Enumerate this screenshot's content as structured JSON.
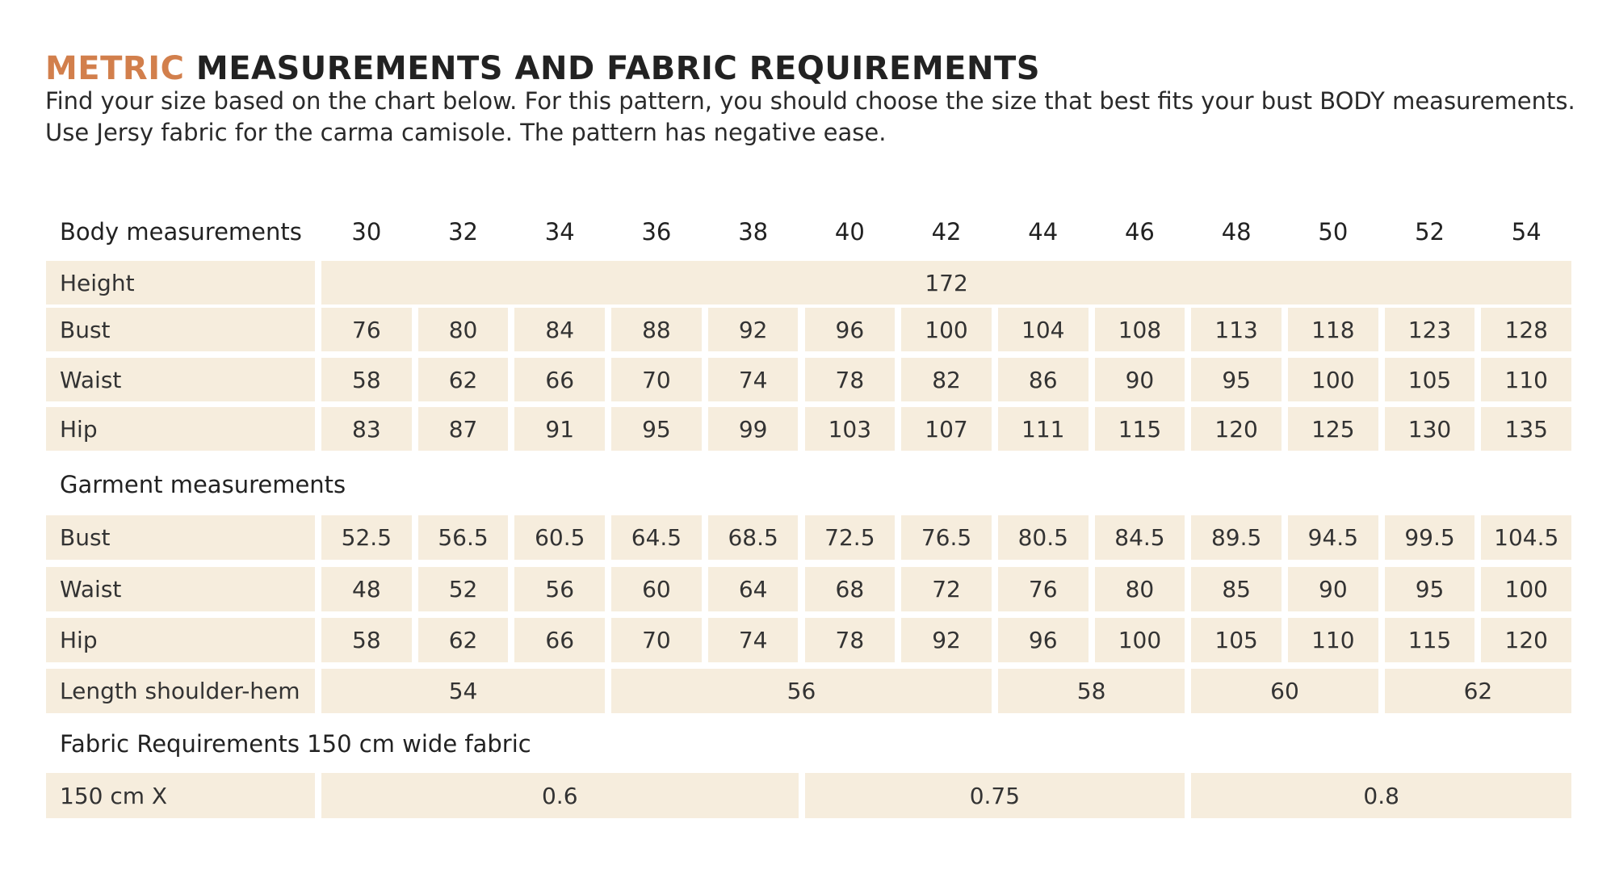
{
  "title": {
    "highlight": "METRIC",
    "rest": "MEASUREMENTS AND FABRIC REQUIREMENTS"
  },
  "description": [
    "Find your size based on the chart below. For this pattern, you should choose the size that best fits your bust BODY measurements.",
    "Use Jersy fabric for the carma camisole. The pattern has negative ease."
  ],
  "table": {
    "header": {
      "label": "Body measurements",
      "sizes": [
        "30",
        "32",
        "34",
        "36",
        "38",
        "40",
        "42",
        "44",
        "46",
        "48",
        "50",
        "52",
        "54"
      ]
    },
    "body_rows": [
      {
        "label": "Height",
        "cells": [
          "172"
        ]
      },
      {
        "label": "Bust",
        "cells": [
          "76",
          "80",
          "84",
          "88",
          "92",
          "96",
          "100",
          "104",
          "108",
          "113",
          "118",
          "123",
          "128"
        ]
      },
      {
        "label": "Waist",
        "cells": [
          "58",
          "62",
          "66",
          "70",
          "74",
          "78",
          "82",
          "86",
          "90",
          "95",
          "100",
          "105",
          "110"
        ]
      },
      {
        "label": "Hip",
        "cells": [
          "83",
          "87",
          "91",
          "95",
          "99",
          "103",
          "107",
          "111",
          "115",
          "120",
          "125",
          "130",
          "135"
        ]
      }
    ],
    "garment_heading": "Garment measurements",
    "garment_rows": [
      {
        "label": "Bust",
        "cells": [
          "52.5",
          "56.5",
          "60.5",
          "64.5",
          "68.5",
          "72.5",
          "76.5",
          "80.5",
          "84.5",
          "89.5",
          "94.5",
          "99.5",
          "104.5"
        ]
      },
      {
        "label": "Waist",
        "cells": [
          "48",
          "52",
          "56",
          "60",
          "64",
          "68",
          "72",
          "76",
          "80",
          "85",
          "90",
          "95",
          "100"
        ]
      },
      {
        "label": "Hip",
        "cells": [
          "58",
          "62",
          "66",
          "70",
          "74",
          "78",
          "92",
          "96",
          "100",
          "105",
          "110",
          "115",
          "120"
        ]
      },
      {
        "label": "Length shoulder-hem",
        "cells": [
          "54",
          "56",
          "58",
          "60",
          "62"
        ]
      }
    ],
    "fabric_heading": "Fabric Requirements 150 cm wide fabric",
    "fabric_rows": [
      {
        "label": "150 cm X",
        "cells": [
          "0.6",
          "0.75",
          "0.8"
        ]
      }
    ]
  }
}
